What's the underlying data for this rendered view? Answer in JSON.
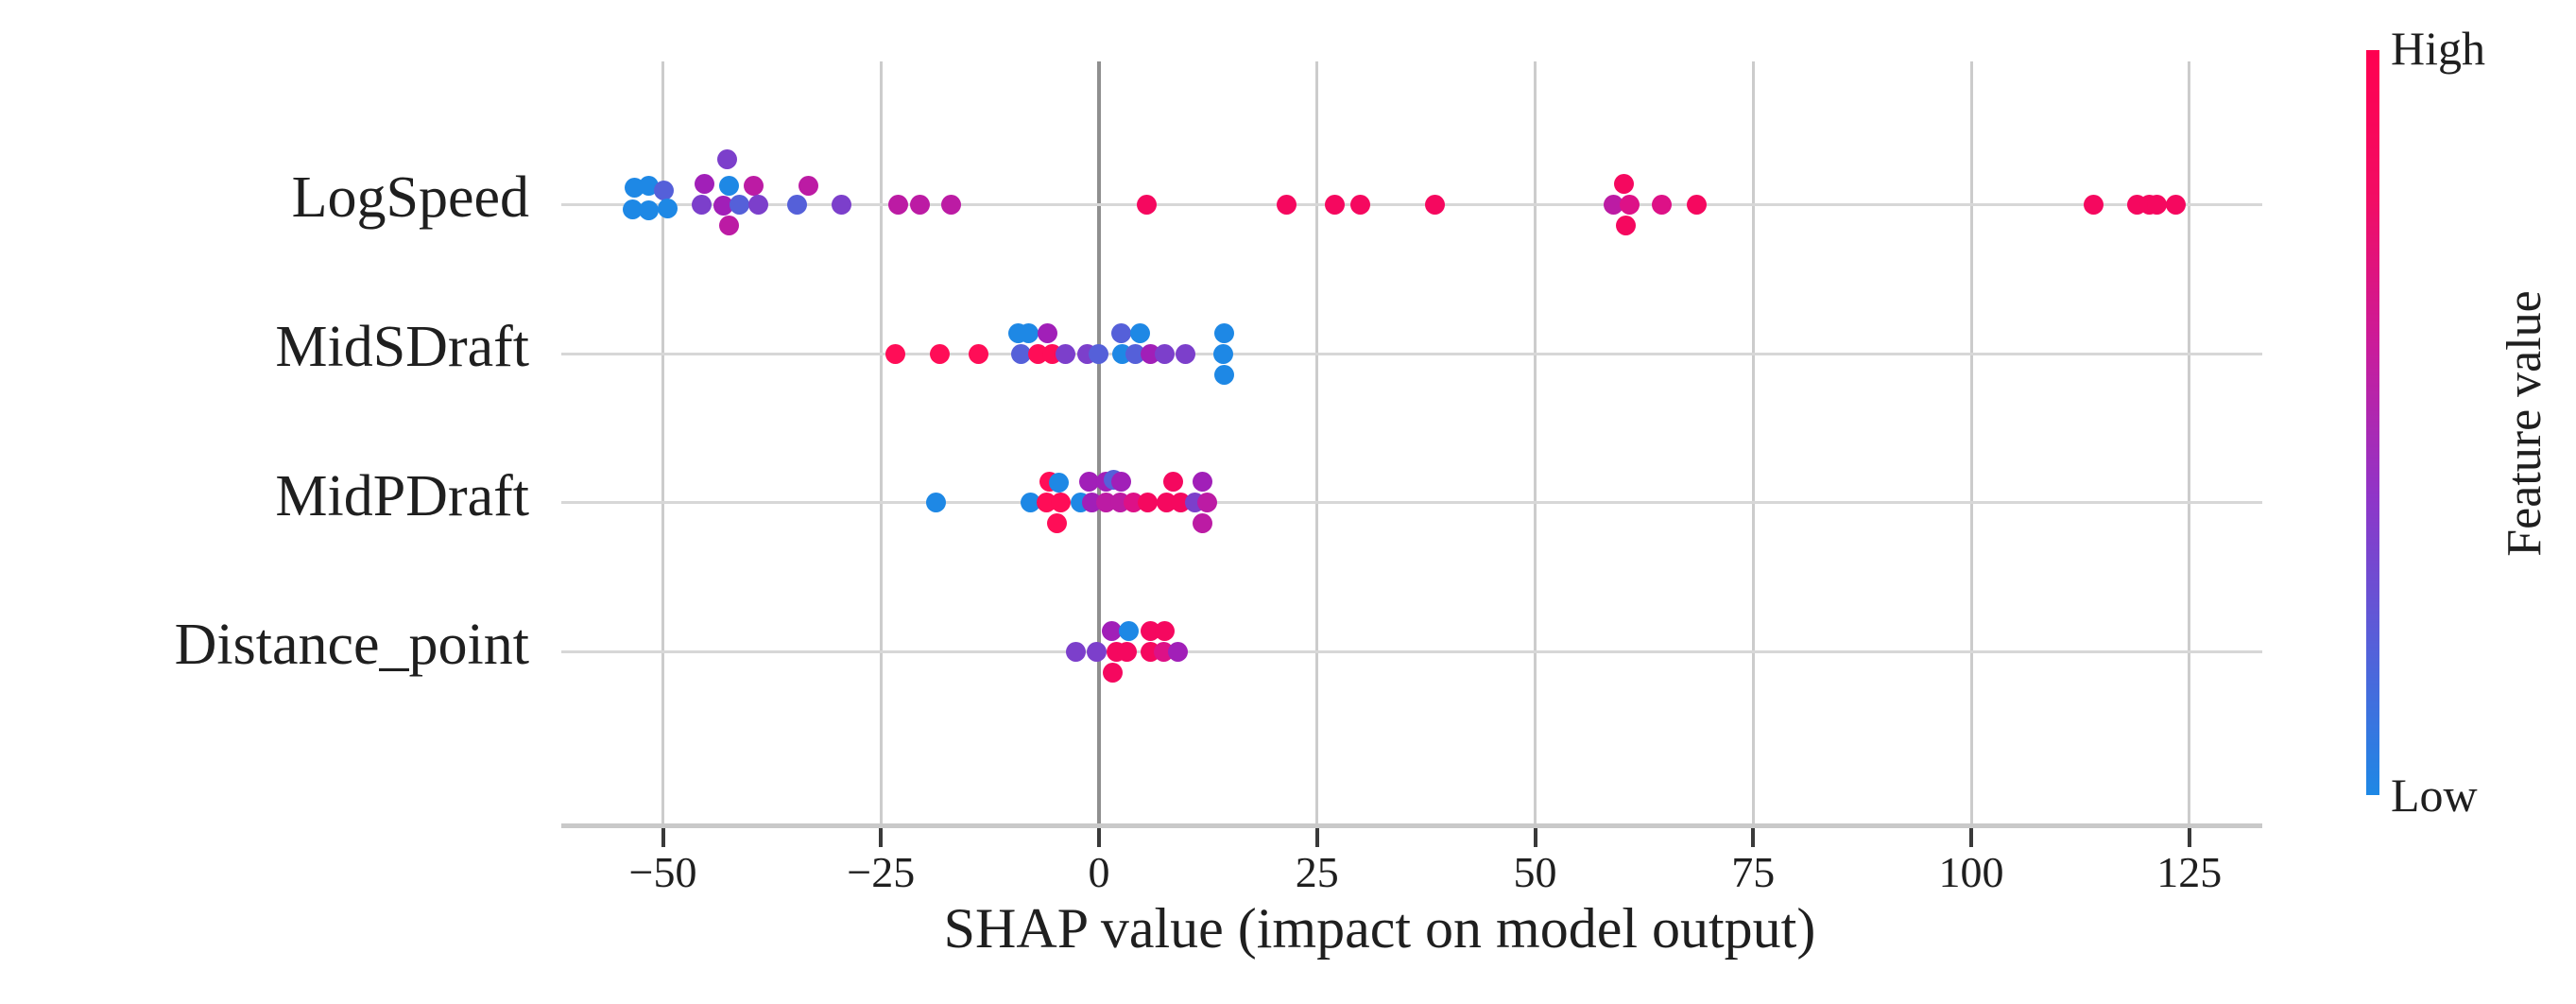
{
  "chart_data": {
    "type": "scatter",
    "variant": "shap-beeswarm-summary",
    "title": "",
    "xlabel": "SHAP value (impact on model output)",
    "xlim": [
      -61.5,
      133.5
    ],
    "grid": true,
    "x_ticks": [
      {
        "v": -50,
        "label": "−50"
      },
      {
        "v": -25,
        "label": "−25"
      },
      {
        "v": 0,
        "label": "0"
      },
      {
        "v": 25,
        "label": "25"
      },
      {
        "v": 50,
        "label": "50"
      },
      {
        "v": 75,
        "label": "75"
      },
      {
        "v": 100,
        "label": "100"
      },
      {
        "v": 125,
        "label": "125"
      }
    ],
    "features": [
      "LogSpeed",
      "MidSDraft",
      "MidPDraft",
      "Distance_point"
    ],
    "palette": {
      "b": "#1E88E5",
      "bv": "#5560D9",
      "v": "#7C3FCB",
      "p": "#A11FB8",
      "m": "#BC1BA4",
      "mp": "#DD1187",
      "pk": "#F5085F",
      "r": "#FF0D57"
    },
    "series": [
      {
        "name": "LogSpeed",
        "points": [
          [
            -53.2,
            -18,
            "b"
          ],
          [
            -53.5,
            5,
            "b"
          ],
          [
            -51.6,
            -20,
            "b"
          ],
          [
            -51.6,
            6,
            "b"
          ],
          [
            -49.9,
            -15,
            "bv"
          ],
          [
            -49.5,
            4,
            "b"
          ],
          [
            -45.2,
            -22,
            "p"
          ],
          [
            -45.6,
            0,
            "v"
          ],
          [
            -42.6,
            -48,
            "v"
          ],
          [
            -42.4,
            -20,
            "b"
          ],
          [
            -43.1,
            1,
            "p"
          ],
          [
            -41.2,
            0,
            "bv"
          ],
          [
            -42.4,
            22,
            "m"
          ],
          [
            -39.6,
            -20,
            "m"
          ],
          [
            -39.1,
            0,
            "v"
          ],
          [
            -34.6,
            0,
            "bv"
          ],
          [
            -33.3,
            -20,
            "m"
          ],
          [
            -29.5,
            0,
            "v"
          ],
          [
            -23.0,
            0,
            "m"
          ],
          [
            -20.5,
            0,
            "m"
          ],
          [
            -17.0,
            0,
            "m"
          ],
          [
            5.5,
            0,
            "pk"
          ],
          [
            21.5,
            0,
            "pk"
          ],
          [
            27.0,
            0,
            "pk"
          ],
          [
            30.0,
            0,
            "pk"
          ],
          [
            38.5,
            0,
            "pk"
          ],
          [
            60.2,
            -22,
            "pk"
          ],
          [
            59.0,
            0,
            "m"
          ],
          [
            60.8,
            0,
            "mp"
          ],
          [
            60.4,
            22,
            "pk"
          ],
          [
            64.5,
            0,
            "mp"
          ],
          [
            68.5,
            0,
            "pk"
          ],
          [
            114.0,
            0,
            "pk"
          ],
          [
            119.0,
            0,
            "pk"
          ],
          [
            120.4,
            0,
            "pk"
          ],
          [
            121.3,
            0,
            "pk"
          ],
          [
            123.5,
            0,
            "pk"
          ]
        ]
      },
      {
        "name": "MidSDraft",
        "points": [
          [
            -23.4,
            0,
            "r"
          ],
          [
            -18.3,
            0,
            "r"
          ],
          [
            -13.8,
            0,
            "r"
          ],
          [
            -9.3,
            -22,
            "b"
          ],
          [
            -8.1,
            -22,
            "b"
          ],
          [
            -5.9,
            -22,
            "p"
          ],
          [
            -8.9,
            0,
            "bv"
          ],
          [
            -7.0,
            0,
            "r"
          ],
          [
            -5.4,
            0,
            "r"
          ],
          [
            -3.8,
            0,
            "v"
          ],
          [
            -1.4,
            0,
            "v"
          ],
          [
            -0.1,
            0,
            "bv"
          ],
          [
            2.6,
            -22,
            "bv"
          ],
          [
            4.7,
            -22,
            "b"
          ],
          [
            2.7,
            0,
            "b"
          ],
          [
            4.2,
            0,
            "bv"
          ],
          [
            5.9,
            0,
            "p"
          ],
          [
            7.5,
            0,
            "v"
          ],
          [
            9.9,
            0,
            "v"
          ],
          [
            14.4,
            -22,
            "b"
          ],
          [
            14.2,
            0,
            "b"
          ],
          [
            14.4,
            22,
            "b"
          ]
        ]
      },
      {
        "name": "MidPDraft",
        "points": [
          [
            -18.7,
            0,
            "b"
          ],
          [
            -7.9,
            0,
            "b"
          ],
          [
            -5.7,
            -22,
            "r"
          ],
          [
            -4.6,
            -21,
            "b"
          ],
          [
            -1.1,
            -22,
            "p"
          ],
          [
            0.8,
            -22,
            "p"
          ],
          [
            1.7,
            -24,
            "bv"
          ],
          [
            2.6,
            -22,
            "p"
          ],
          [
            8.5,
            -22,
            "pk"
          ],
          [
            11.9,
            -22,
            "p"
          ],
          [
            -6.0,
            0,
            "r"
          ],
          [
            -4.4,
            0,
            "r"
          ],
          [
            -2.1,
            0,
            "b"
          ],
          [
            -0.8,
            0,
            "p"
          ],
          [
            0.8,
            0,
            "m"
          ],
          [
            2.4,
            0,
            "m"
          ],
          [
            4.0,
            0,
            "mp"
          ],
          [
            5.6,
            0,
            "pk"
          ],
          [
            7.8,
            0,
            "pk"
          ],
          [
            9.4,
            0,
            "pk"
          ],
          [
            11.0,
            0,
            "v"
          ],
          [
            12.4,
            0,
            "m"
          ],
          [
            -4.8,
            22,
            "r"
          ],
          [
            11.9,
            22,
            "m"
          ]
        ]
      },
      {
        "name": "Distance_point",
        "points": [
          [
            1.5,
            -22,
            "p"
          ],
          [
            3.4,
            -22,
            "b"
          ],
          [
            5.9,
            -22,
            "pk"
          ],
          [
            7.5,
            -22,
            "pk"
          ],
          [
            -2.7,
            0,
            "v"
          ],
          [
            -0.3,
            0,
            "v"
          ],
          [
            2.0,
            0,
            "pk"
          ],
          [
            3.2,
            0,
            "pk"
          ],
          [
            5.9,
            0,
            "pk"
          ],
          [
            7.4,
            0,
            "mp"
          ],
          [
            9.0,
            0,
            "p"
          ],
          [
            1.6,
            22,
            "pk"
          ]
        ]
      }
    ],
    "colorbar": {
      "label": "Feature value",
      "high_label": "High",
      "low_label": "Low",
      "gradient_top_to_bottom": [
        "#FF0050",
        "#F20D64",
        "#C91C9B",
        "#8F35C8",
        "#5560D9",
        "#1E88E5"
      ]
    }
  }
}
